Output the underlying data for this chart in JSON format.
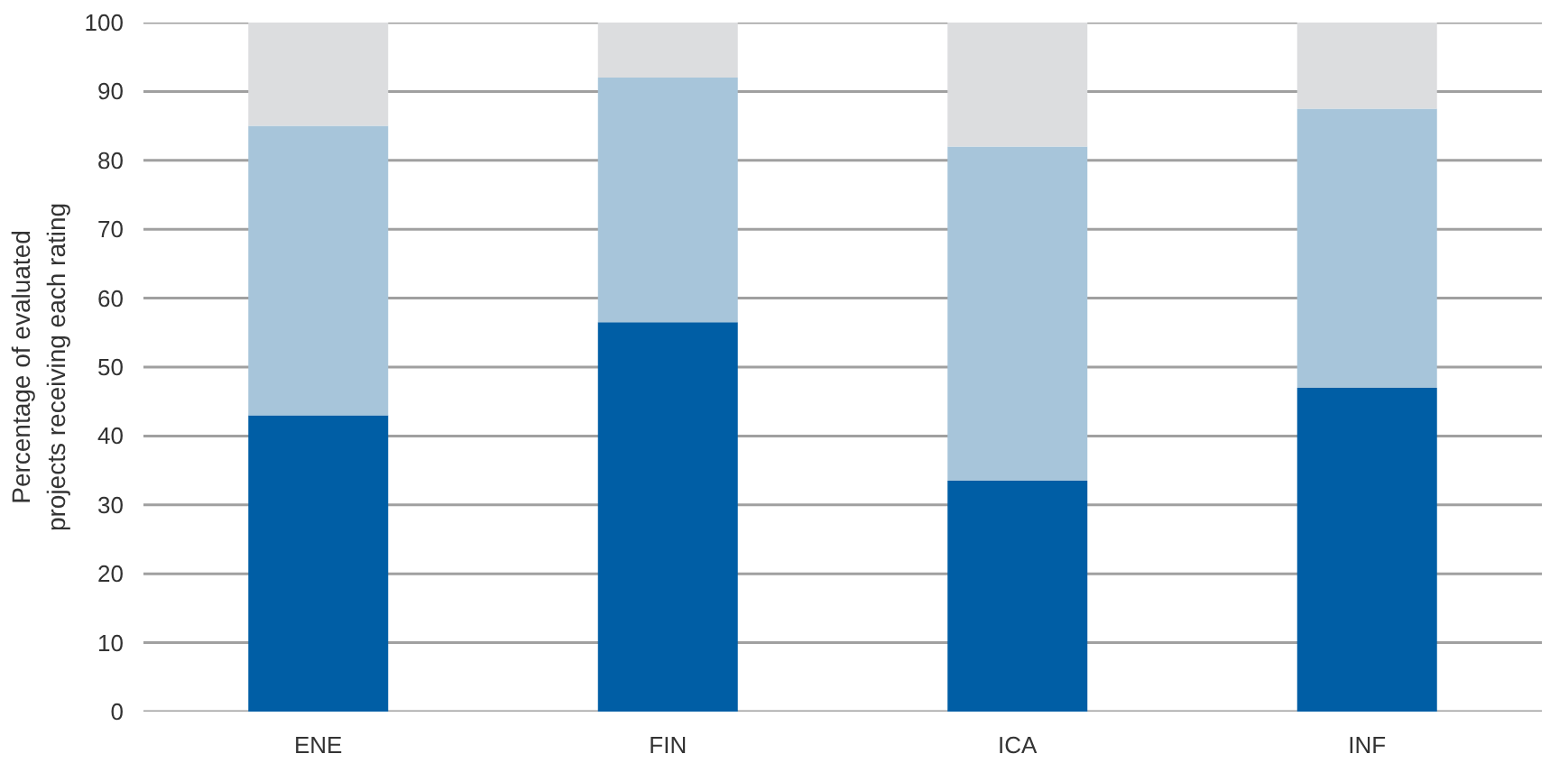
{
  "chart_data": {
    "type": "bar",
    "stacked": true,
    "ylabel": "Percentage of evaluated\nprojects receiving each rating",
    "categories": [
      "ENE",
      "FIN",
      "ICA",
      "INF"
    ],
    "series": [
      {
        "color": "#005ea5",
        "values": [
          43,
          56.5,
          33.5,
          47
        ]
      },
      {
        "color": "#a7c5da",
        "values": [
          42,
          35.5,
          48.5,
          40.5
        ]
      },
      {
        "color": "#dcdddf",
        "values": [
          15,
          8,
          18,
          12.5
        ]
      }
    ],
    "ylim": [
      0,
      100
    ],
    "yticks": [
      0,
      10,
      20,
      30,
      40,
      50,
      60,
      70,
      80,
      90,
      100
    ],
    "grid": "y"
  }
}
